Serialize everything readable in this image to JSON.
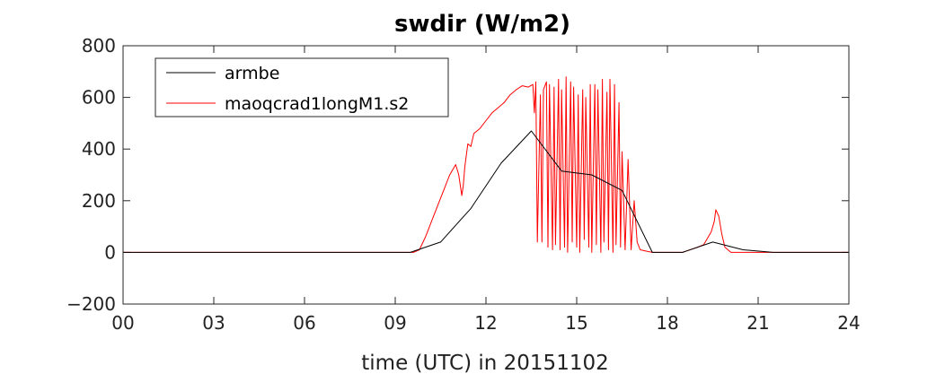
{
  "chart_data": {
    "type": "line",
    "title": "swdir  (W/m2)",
    "xlabel": "time (UTC) in 20151102",
    "ylabel": "",
    "xlim": [
      0,
      24
    ],
    "ylim": [
      -200,
      800
    ],
    "x_ticks": [
      0,
      3,
      6,
      9,
      12,
      15,
      18,
      21,
      24
    ],
    "x_tick_labels": [
      "00",
      "03",
      "06",
      "09",
      "12",
      "15",
      "18",
      "21",
      "24"
    ],
    "y_ticks": [
      -200,
      0,
      200,
      400,
      600,
      800
    ],
    "y_tick_labels": [
      "−200",
      "0",
      "200",
      "400",
      "600",
      "800"
    ],
    "grid": false,
    "legend_position": "top-left",
    "series": [
      {
        "name": "armbe",
        "color": "#000000",
        "x": [
          0,
          0.5,
          1.5,
          2.5,
          3.5,
          4.5,
          5.5,
          6.5,
          7.5,
          8.5,
          9.5,
          10.5,
          11.5,
          12.5,
          13.5,
          14.5,
          15.5,
          16.5,
          17.5,
          18.5,
          19.5,
          20.5,
          21.5,
          22.5,
          23.5,
          24
        ],
        "y": [
          0,
          0,
          0,
          0,
          0,
          0,
          0,
          0,
          0,
          0,
          0,
          40,
          170,
          345,
          470,
          315,
          300,
          240,
          0,
          0,
          40,
          10,
          0,
          0,
          0,
          0
        ]
      },
      {
        "name": "maoqcrad1longM1.s2",
        "color": "#ff0000",
        "x": [
          0,
          9.6,
          9.8,
          10.0,
          10.2,
          10.4,
          10.6,
          10.8,
          11.0,
          11.1,
          11.2,
          11.25,
          11.3,
          11.4,
          11.5,
          11.6,
          11.8,
          12.0,
          12.2,
          12.4,
          12.6,
          12.8,
          13.0,
          13.2,
          13.4,
          13.55,
          13.6,
          13.65,
          13.7,
          13.8,
          13.85,
          13.9,
          14.0,
          14.05,
          14.1,
          14.2,
          14.25,
          14.3,
          14.4,
          14.45,
          14.5,
          14.6,
          14.65,
          14.7,
          14.8,
          14.85,
          14.9,
          15.0,
          15.05,
          15.1,
          15.2,
          15.25,
          15.3,
          15.4,
          15.45,
          15.5,
          15.6,
          15.65,
          15.7,
          15.8,
          15.85,
          15.9,
          16.0,
          16.05,
          16.1,
          16.2,
          16.25,
          16.3,
          16.4,
          16.45,
          16.5,
          16.6,
          16.7,
          16.8,
          16.9,
          17.0,
          17.1,
          17.3,
          17.5,
          17.6,
          17.8,
          18.0,
          18.5,
          19.0,
          19.2,
          19.35,
          19.45,
          19.55,
          19.6,
          19.7,
          19.8,
          19.9,
          20.1,
          20.5,
          21,
          22,
          24
        ],
        "y": [
          0,
          0,
          10,
          60,
          120,
          180,
          240,
          300,
          340,
          300,
          220,
          260,
          330,
          420,
          410,
          460,
          480,
          510,
          540,
          560,
          580,
          610,
          630,
          645,
          640,
          650,
          540,
          660,
          40,
          610,
          40,
          630,
          660,
          20,
          650,
          10,
          640,
          30,
          670,
          10,
          630,
          20,
          680,
          0,
          660,
          40,
          640,
          20,
          610,
          0,
          630,
          50,
          600,
          20,
          650,
          0,
          650,
          30,
          630,
          0,
          670,
          40,
          620,
          10,
          670,
          0,
          650,
          30,
          580,
          20,
          390,
          10,
          360,
          10,
          200,
          40,
          10,
          5,
          0,
          0,
          0,
          0,
          0,
          20,
          30,
          60,
          80,
          120,
          165,
          140,
          70,
          20,
          0,
          0,
          0,
          0,
          0
        ]
      }
    ]
  }
}
